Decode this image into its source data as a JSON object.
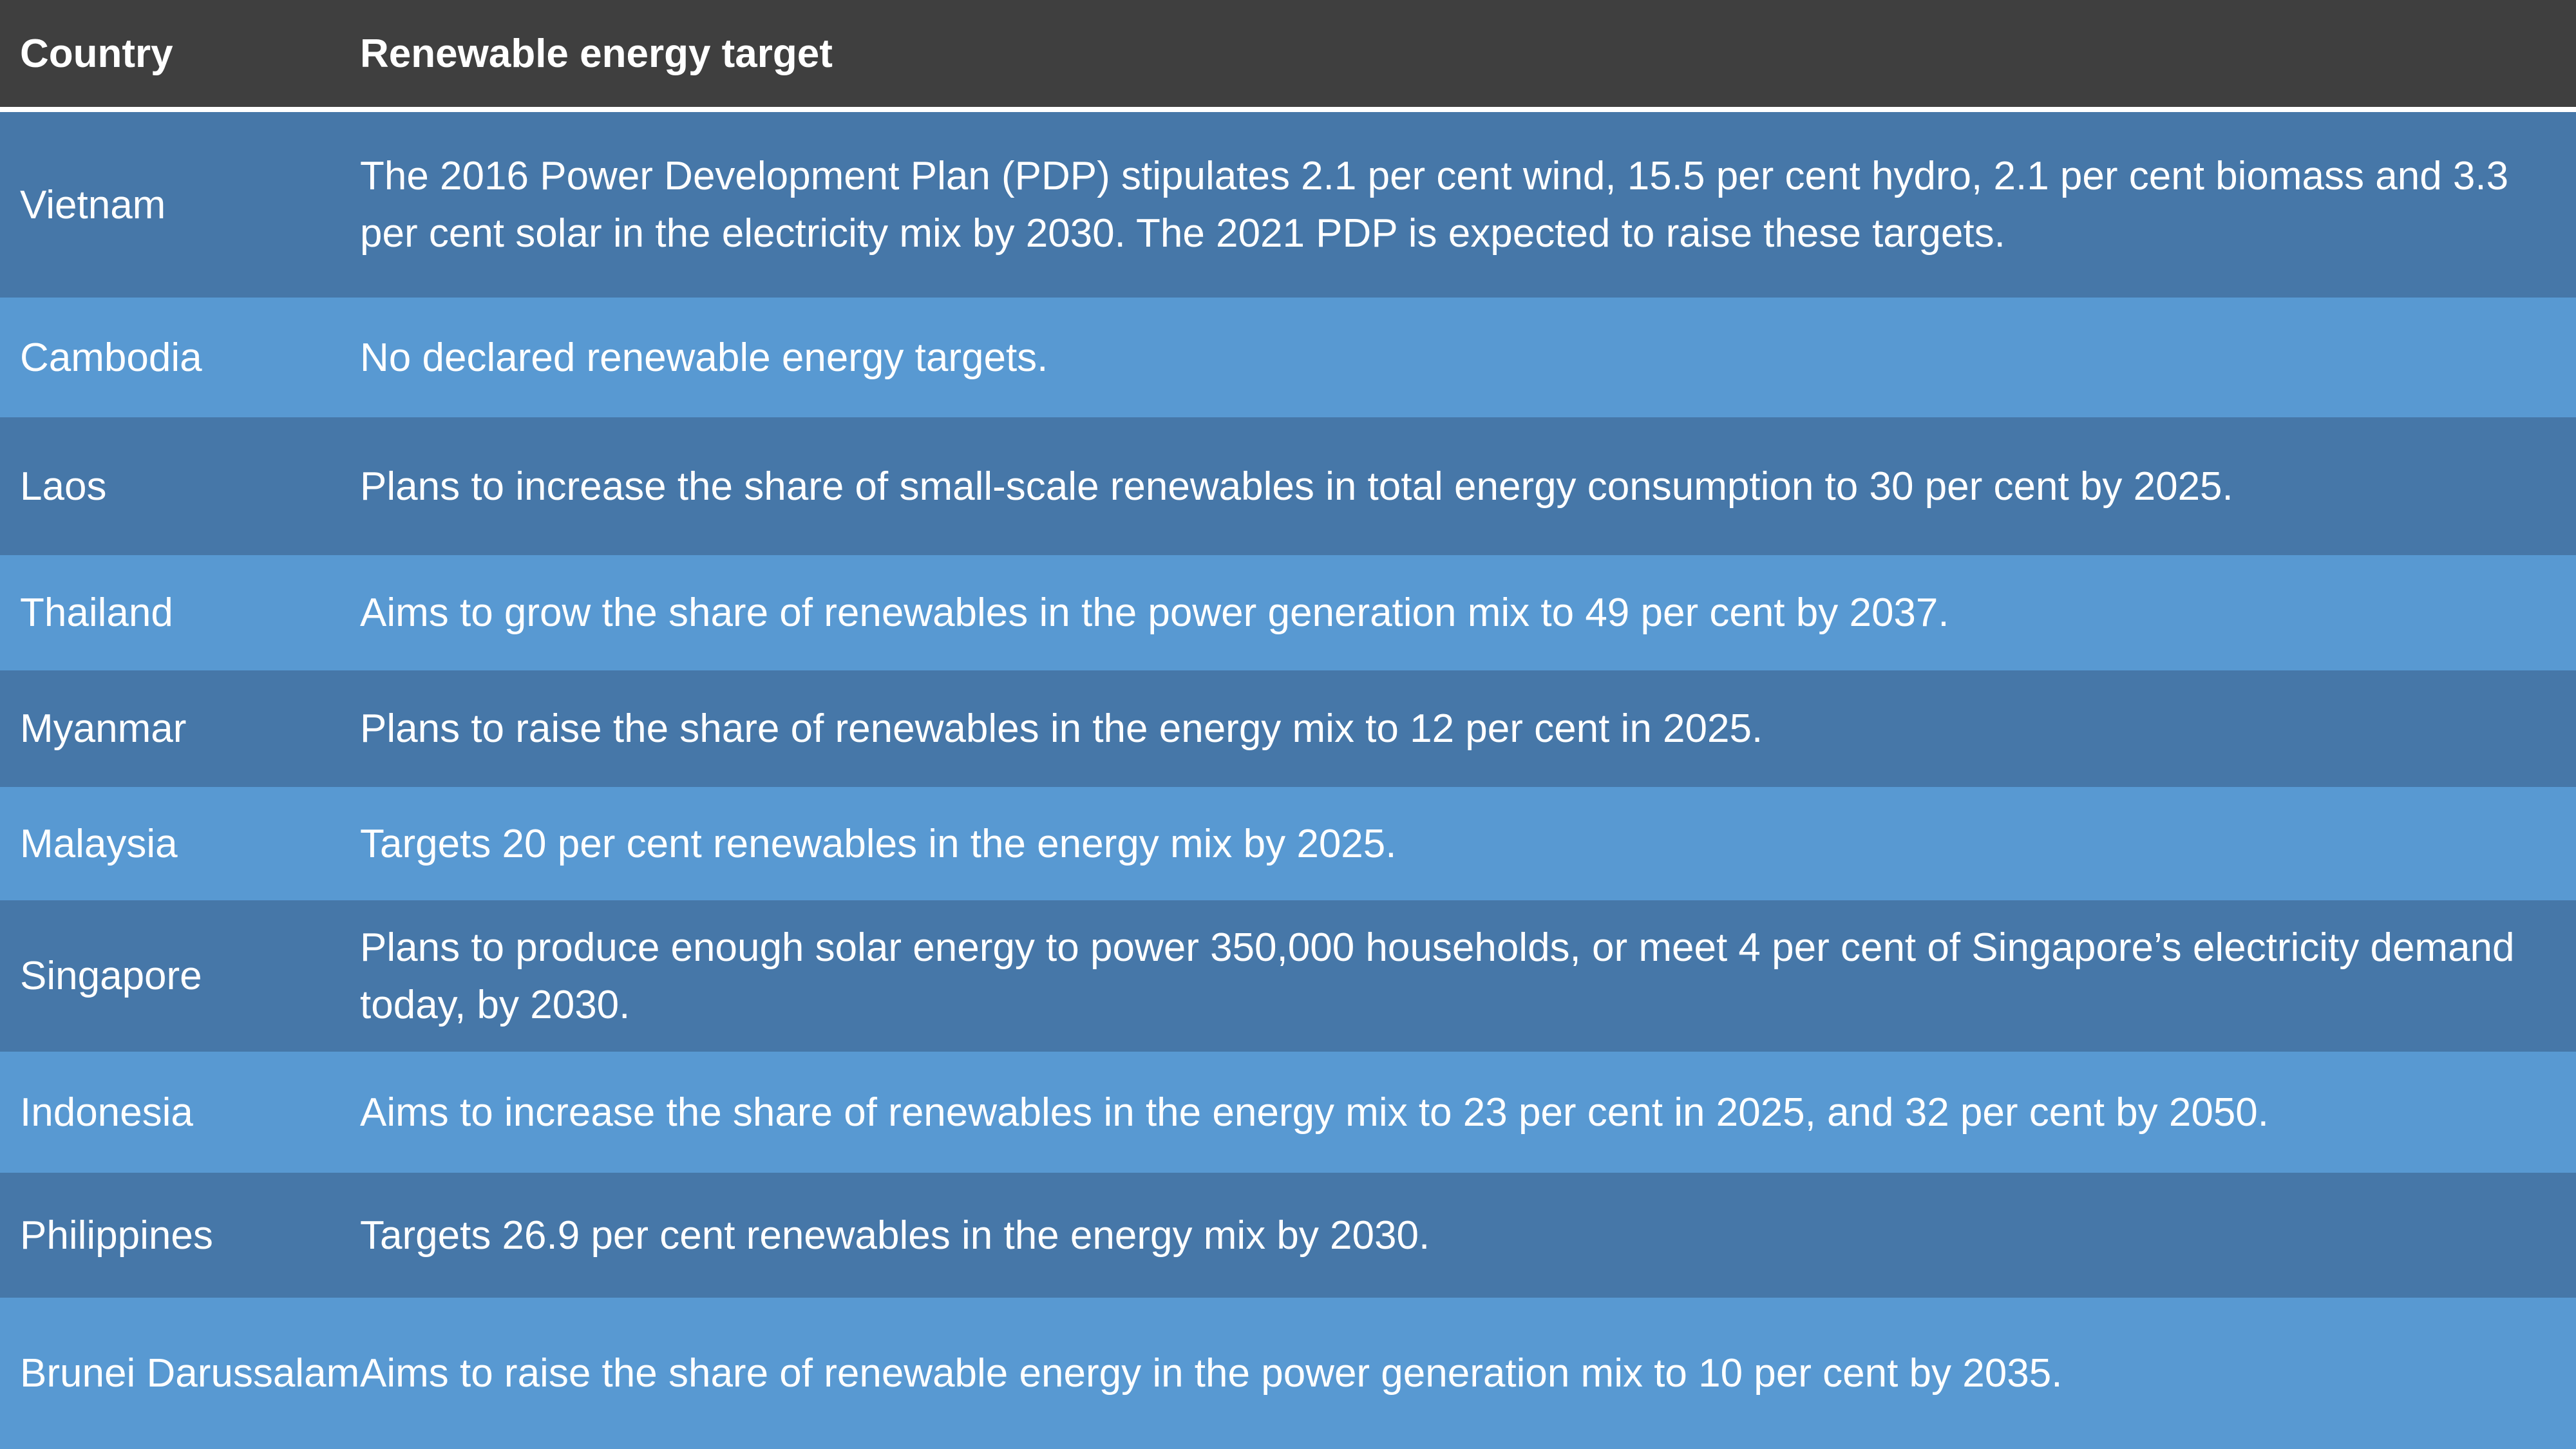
{
  "header": {
    "columns": [
      "Country",
      "Renewable energy target"
    ]
  },
  "table": {
    "rows": [
      [
        "Vietnam",
        "The 2016 Power Development Plan (PDP) stipulates 2.1 per cent wind, 15.5 per cent hydro, 2.1 per cent biomass and 3.3 per cent solar in the electricity mix by 2030. The 2021 PDP is expected to raise these targets."
      ],
      [
        "Cambodia",
        "No declared renewable energy targets."
      ],
      [
        "Laos",
        "Plans to increase the share of small-scale renewables in total energy consumption to 30 per cent by 2025."
      ],
      [
        "Thailand",
        "Aims to grow the share of renewables in the power generation mix to 49 per cent by 2037."
      ],
      [
        "Myanmar",
        "Plans to raise the share of renewables in the energy mix to 12 per cent in 2025."
      ],
      [
        "Malaysia",
        "Targets 20 per cent renewables in the energy mix by 2025."
      ],
      [
        "Singapore",
        "Plans to produce enough solar energy to power 350,000 households, or meet 4 per cent of Singapore’s electricity demand today, by 2030."
      ],
      [
        "Indonesia",
        "Aims to increase the share of renewables in the energy mix to 23 per cent in 2025, and 32 per cent by 2050."
      ],
      [
        "Philippines",
        "Targets 26.9 per cent renewables in the energy mix by 2030."
      ],
      [
        "Brunei Darussalam",
        "Aims to raise the share of renewable energy in the power generation mix to 10 per cent by 2035."
      ]
    ]
  }
}
